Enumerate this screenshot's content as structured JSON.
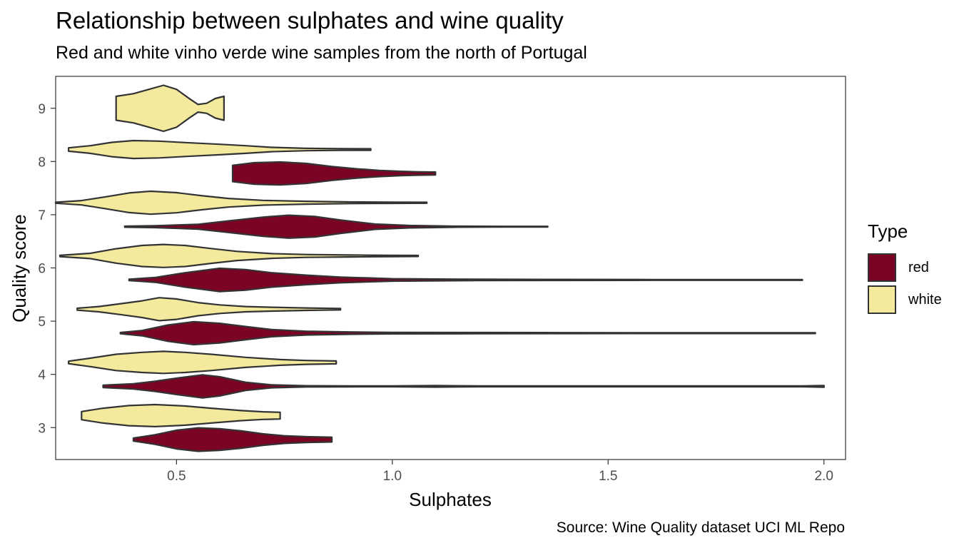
{
  "chart_data": {
    "type": "violin",
    "title": "Relationship between sulphates and wine quality",
    "subtitle": "Red and white vinho verde wine samples from the north of Portugal",
    "caption": "Source: Wine Quality dataset UCI ML Repo",
    "xlabel": "Sulphates",
    "ylabel": "Quality score",
    "xlim": [
      0.22,
      2.05
    ],
    "ylim": [
      2.4,
      9.6
    ],
    "xticks": [
      0.5,
      1.0,
      1.5,
      2.0
    ],
    "xtick_labels": [
      "0.5",
      "1.0",
      "1.5",
      "2.0"
    ],
    "yticks": [
      3,
      4,
      5,
      6,
      7,
      8,
      9
    ],
    "ytick_labels": [
      "3",
      "4",
      "5",
      "6",
      "7",
      "8",
      "9"
    ],
    "grid": false,
    "legend": {
      "title": "Type",
      "position": "right"
    },
    "series": [
      {
        "name": "red",
        "color": "#7B0323",
        "violins": [
          {
            "quality": 3,
            "min": 0.4,
            "max": 0.86,
            "profile": [
              [
                0.4,
                0.12
              ],
              [
                0.45,
                0.4
              ],
              [
                0.5,
                0.78
              ],
              [
                0.55,
                0.98
              ],
              [
                0.6,
                0.9
              ],
              [
                0.65,
                0.72
              ],
              [
                0.7,
                0.48
              ],
              [
                0.75,
                0.32
              ],
              [
                0.8,
                0.24
              ],
              [
                0.86,
                0.2
              ]
            ]
          },
          {
            "quality": 4,
            "min": 0.33,
            "max": 2.0,
            "profile": [
              [
                0.33,
                0.1
              ],
              [
                0.4,
                0.22
              ],
              [
                0.45,
                0.42
              ],
              [
                0.5,
                0.68
              ],
              [
                0.56,
                0.96
              ],
              [
                0.6,
                0.8
              ],
              [
                0.66,
                0.34
              ],
              [
                0.72,
                0.12
              ],
              [
                0.8,
                0.05
              ],
              [
                0.9,
                0.04
              ],
              [
                1.0,
                0.03
              ],
              [
                1.1,
                0.06
              ],
              [
                1.2,
                0.03
              ],
              [
                1.4,
                0.03
              ],
              [
                1.6,
                0.03
              ],
              [
                1.8,
                0.03
              ],
              [
                1.95,
                0.03
              ],
              [
                2.0,
                0.07
              ]
            ]
          },
          {
            "quality": 5,
            "min": 0.37,
            "max": 1.98,
            "profile": [
              [
                0.37,
                0.05
              ],
              [
                0.42,
                0.22
              ],
              [
                0.48,
                0.68
              ],
              [
                0.54,
                0.96
              ],
              [
                0.6,
                0.82
              ],
              [
                0.66,
                0.55
              ],
              [
                0.72,
                0.3
              ],
              [
                0.8,
                0.16
              ],
              [
                0.9,
                0.1
              ],
              [
                1.0,
                0.06
              ],
              [
                1.2,
                0.05
              ],
              [
                1.4,
                0.04
              ],
              [
                1.6,
                0.03
              ],
              [
                1.8,
                0.03
              ],
              [
                1.98,
                0.03
              ]
            ]
          },
          {
            "quality": 6,
            "min": 0.39,
            "max": 1.95,
            "profile": [
              [
                0.39,
                0.05
              ],
              [
                0.45,
                0.2
              ],
              [
                0.52,
                0.6
              ],
              [
                0.6,
                0.97
              ],
              [
                0.66,
                0.86
              ],
              [
                0.72,
                0.6
              ],
              [
                0.8,
                0.4
              ],
              [
                0.88,
                0.24
              ],
              [
                1.0,
                0.1
              ],
              [
                1.2,
                0.05
              ],
              [
                1.4,
                0.04
              ],
              [
                1.6,
                0.03
              ],
              [
                1.8,
                0.03
              ],
              [
                1.95,
                0.03
              ]
            ]
          },
          {
            "quality": 7,
            "min": 0.38,
            "max": 1.36,
            "profile": [
              [
                0.38,
                0.04
              ],
              [
                0.45,
                0.08
              ],
              [
                0.55,
                0.2
              ],
              [
                0.62,
                0.48
              ],
              [
                0.7,
                0.8
              ],
              [
                0.76,
                0.96
              ],
              [
                0.82,
                0.86
              ],
              [
                0.88,
                0.56
              ],
              [
                0.96,
                0.22
              ],
              [
                1.04,
                0.1
              ],
              [
                1.15,
                0.04
              ],
              [
                1.25,
                0.03
              ],
              [
                1.36,
                0.03
              ]
            ]
          },
          {
            "quality": 8,
            "min": 0.63,
            "max": 1.1,
            "profile": [
              [
                0.63,
                0.68
              ],
              [
                0.68,
                0.9
              ],
              [
                0.74,
                0.96
              ],
              [
                0.8,
                0.84
              ],
              [
                0.86,
                0.58
              ],
              [
                0.92,
                0.38
              ],
              [
                0.97,
                0.26
              ],
              [
                1.02,
                0.18
              ],
              [
                1.06,
                0.14
              ],
              [
                1.1,
                0.12
              ]
            ]
          }
        ]
      },
      {
        "name": "white",
        "color": "#F3EA9E",
        "violins": [
          {
            "quality": 3,
            "min": 0.28,
            "max": 0.74,
            "profile": [
              [
                0.28,
                0.34
              ],
              [
                0.33,
                0.62
              ],
              [
                0.39,
                0.84
              ],
              [
                0.45,
                0.92
              ],
              [
                0.52,
                0.8
              ],
              [
                0.58,
                0.62
              ],
              [
                0.65,
                0.42
              ],
              [
                0.7,
                0.32
              ],
              [
                0.74,
                0.28
              ]
            ]
          },
          {
            "quality": 4,
            "min": 0.25,
            "max": 0.87,
            "profile": [
              [
                0.25,
                0.1
              ],
              [
                0.3,
                0.35
              ],
              [
                0.36,
                0.68
              ],
              [
                0.42,
                0.84
              ],
              [
                0.47,
                0.92
              ],
              [
                0.52,
                0.84
              ],
              [
                0.58,
                0.68
              ],
              [
                0.66,
                0.42
              ],
              [
                0.74,
                0.24
              ],
              [
                0.8,
                0.16
              ],
              [
                0.87,
                0.12
              ]
            ]
          },
          {
            "quality": 5,
            "min": 0.27,
            "max": 0.88,
            "profile": [
              [
                0.27,
                0.08
              ],
              [
                0.32,
                0.22
              ],
              [
                0.38,
                0.5
              ],
              [
                0.42,
                0.7
              ],
              [
                0.46,
                0.96
              ],
              [
                0.5,
                0.85
              ],
              [
                0.55,
                0.55
              ],
              [
                0.6,
                0.36
              ],
              [
                0.66,
                0.22
              ],
              [
                0.72,
                0.16
              ],
              [
                0.8,
                0.1
              ],
              [
                0.88,
                0.06
              ]
            ]
          },
          {
            "quality": 6,
            "min": 0.23,
            "max": 1.06,
            "profile": [
              [
                0.23,
                0.05
              ],
              [
                0.3,
                0.22
              ],
              [
                0.36,
                0.6
              ],
              [
                0.42,
                0.88
              ],
              [
                0.47,
                0.96
              ],
              [
                0.52,
                0.88
              ],
              [
                0.58,
                0.62
              ],
              [
                0.64,
                0.38
              ],
              [
                0.72,
                0.2
              ],
              [
                0.8,
                0.12
              ],
              [
                0.9,
                0.08
              ],
              [
                1.0,
                0.05
              ],
              [
                1.06,
                0.04
              ]
            ]
          },
          {
            "quality": 7,
            "min": 0.22,
            "max": 1.08,
            "profile": [
              [
                0.22,
                0.04
              ],
              [
                0.28,
                0.18
              ],
              [
                0.34,
                0.52
              ],
              [
                0.39,
                0.82
              ],
              [
                0.44,
                0.96
              ],
              [
                0.5,
                0.84
              ],
              [
                0.56,
                0.58
              ],
              [
                0.62,
                0.36
              ],
              [
                0.7,
                0.2
              ],
              [
                0.8,
                0.12
              ],
              [
                0.9,
                0.07
              ],
              [
                1.0,
                0.05
              ],
              [
                1.08,
                0.04
              ]
            ]
          },
          {
            "quality": 8,
            "min": 0.25,
            "max": 0.95,
            "profile": [
              [
                0.25,
                0.14
              ],
              [
                0.3,
                0.32
              ],
              [
                0.35,
                0.6
              ],
              [
                0.4,
                0.75
              ],
              [
                0.46,
                0.7
              ],
              [
                0.52,
                0.58
              ],
              [
                0.6,
                0.44
              ],
              [
                0.66,
                0.32
              ],
              [
                0.72,
                0.18
              ],
              [
                0.8,
                0.1
              ],
              [
                0.88,
                0.07
              ],
              [
                0.95,
                0.06
              ]
            ]
          },
          {
            "quality": 9,
            "min": 0.36,
            "max": 0.61,
            "profile": [
              [
                0.36,
                1.0
              ],
              [
                0.4,
                1.22
              ],
              [
                0.44,
                1.62
              ],
              [
                0.47,
                1.92
              ],
              [
                0.5,
                1.58
              ],
              [
                0.53,
                0.8
              ],
              [
                0.55,
                0.32
              ],
              [
                0.57,
                0.42
              ],
              [
                0.59,
                0.82
              ],
              [
                0.61,
                1.0
              ]
            ]
          }
        ]
      }
    ]
  }
}
